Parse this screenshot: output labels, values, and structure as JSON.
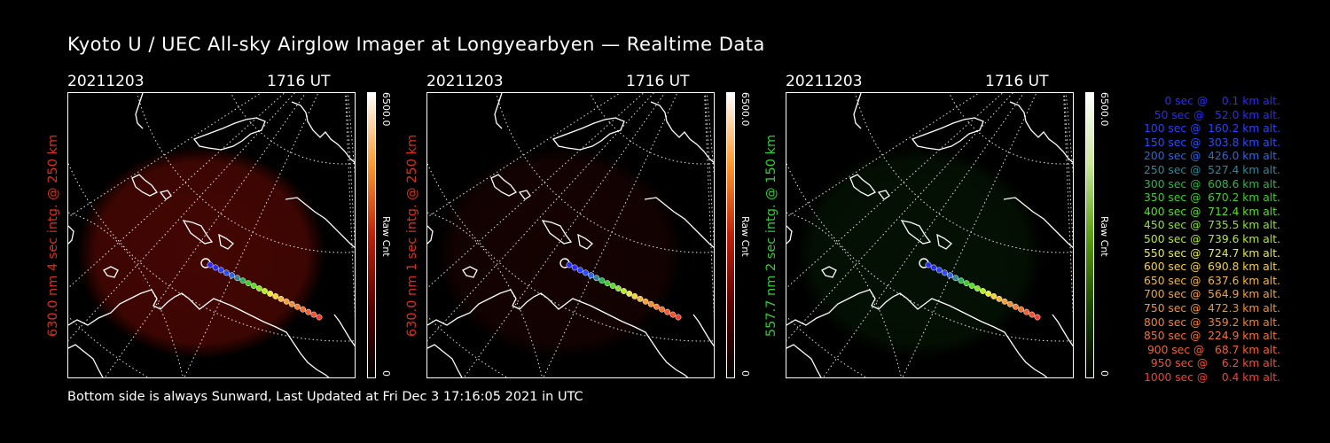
{
  "title": "Kyoto U / UEC All-sky Airglow Imager at Longyearbyen — Realtime Data",
  "footer": "Bottom side is always Sunward, Last Updated at Fri Dec  3 17:16:05 2021 in UTC",
  "panels": [
    {
      "date": "20211203",
      "time": "1716 UT",
      "side_label": "630.0 nm 4 sec intg. @ 250 km",
      "side_color": "#d9301e",
      "cbar_max": "6500.0",
      "cbar_min": "0",
      "cbar_unit": "Raw Cnt",
      "glow": "#7a0c05",
      "glow_opacity": 0.55,
      "cbar_colors": [
        "#ffffff",
        "#ff9a2e",
        "#c0200a",
        "#5a0000",
        "#000000"
      ]
    },
    {
      "date": "20211203",
      "time": "1716 UT",
      "side_label": "630.0 nm 1 sec intg. @ 250 km",
      "side_color": "#d9301e",
      "cbar_max": "6500.0",
      "cbar_min": "0",
      "cbar_unit": "Raw Cnt",
      "glow": "#3a0604",
      "glow_opacity": 0.35,
      "cbar_colors": [
        "#ffffff",
        "#ff9a2e",
        "#c0200a",
        "#5a0000",
        "#000000"
      ]
    },
    {
      "date": "20211203",
      "time": "1716 UT",
      "side_label": "557.7 nm 2 sec intg. @ 150 km",
      "side_color": "#33cc33",
      "cbar_max": "6500.0",
      "cbar_min": "0",
      "cbar_unit": "Raw Cnt",
      "glow": "#0b2a08",
      "glow_opacity": 0.4,
      "cbar_colors": [
        "#ffffff",
        "#c8e89a",
        "#5aa012",
        "#1c4a02",
        "#000000"
      ]
    }
  ],
  "legend": [
    {
      "text": "   0 sec @    0.1 km alt.",
      "color": "#2a2aff"
    },
    {
      "text": "  50 sec @   52.0 km alt.",
      "color": "#2a2aff"
    },
    {
      "text": " 100 sec @  160.2 km alt.",
      "color": "#2a40ff"
    },
    {
      "text": " 150 sec @  303.8 km alt.",
      "color": "#2a4cff"
    },
    {
      "text": " 200 sec @  426.0 km alt.",
      "color": "#2a66e8"
    },
    {
      "text": " 250 sec @  527.4 km alt.",
      "color": "#2a8a9a"
    },
    {
      "text": " 300 sec @  608.6 km alt.",
      "color": "#2ab84a"
    },
    {
      "text": " 350 sec @  670.2 km alt.",
      "color": "#3ad02a"
    },
    {
      "text": " 400 sec @  712.4 km alt.",
      "color": "#5ade2a"
    },
    {
      "text": " 450 sec @  735.5 km alt.",
      "color": "#8ae62a"
    },
    {
      "text": " 500 sec @  739.6 km alt.",
      "color": "#b4ec2a"
    },
    {
      "text": " 550 sec @  724.7 km alt.",
      "color": "#e8ec3a"
    },
    {
      "text": " 600 sec @  690.8 km alt.",
      "color": "#f5d23a"
    },
    {
      "text": " 650 sec @  637.6 km alt.",
      "color": "#f5b83a"
    },
    {
      "text": " 700 sec @  564.9 km alt.",
      "color": "#f5a03a"
    },
    {
      "text": " 750 sec @  472.3 km alt.",
      "color": "#f59030"
    },
    {
      "text": " 800 sec @  359.2 km alt.",
      "color": "#f58030"
    },
    {
      "text": " 850 sec @  224.9 km alt.",
      "color": "#f57030"
    },
    {
      "text": " 900 sec @   68.7 km alt.",
      "color": "#f56030"
    },
    {
      "text": " 950 sec @    6.2 km alt.",
      "color": "#f55030"
    },
    {
      "text": "1000 sec @    0.4 km alt.",
      "color": "#f54030"
    }
  ]
}
